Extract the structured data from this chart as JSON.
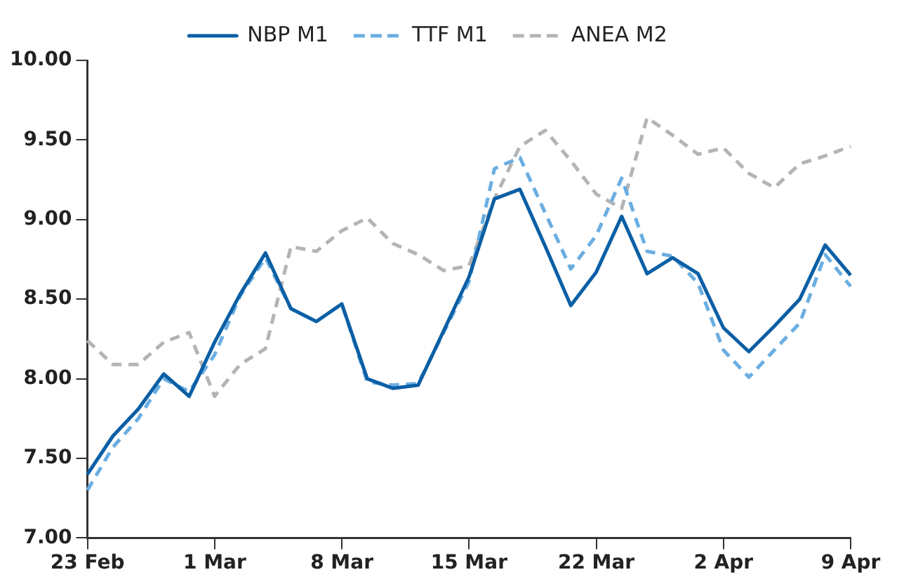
{
  "chart_data": {
    "type": "line",
    "categories": [
      "23 Feb",
      null,
      null,
      null,
      null,
      "1 Mar",
      null,
      null,
      null,
      null,
      "8 Mar",
      null,
      null,
      null,
      null,
      "15 Mar",
      null,
      null,
      null,
      null,
      "22 Mar",
      null,
      null,
      null,
      null,
      "2 Apr",
      null,
      null,
      null,
      null,
      "9 Apr"
    ],
    "series": [
      {
        "name": "NBP M1",
        "color": "#0b5fa5",
        "line_style": "solid",
        "values": [
          7.4,
          7.64,
          7.81,
          8.03,
          7.89,
          8.23,
          8.53,
          8.79,
          8.44,
          8.36,
          8.47,
          8.0,
          7.94,
          7.96,
          8.3,
          8.64,
          9.13,
          9.19,
          8.83,
          8.46,
          8.67,
          9.02,
          8.66,
          8.76,
          8.66,
          8.32,
          8.17,
          8.33,
          8.5,
          8.84,
          8.65
        ]
      },
      {
        "name": "TTF M1",
        "color": "#6aaee2",
        "line_style": "dashed",
        "values": [
          7.3,
          7.57,
          7.75,
          8.0,
          7.92,
          8.15,
          8.52,
          8.76,
          8.44,
          8.36,
          8.47,
          7.98,
          7.96,
          7.97,
          8.29,
          8.61,
          9.32,
          9.39,
          9.04,
          8.69,
          8.9,
          9.26,
          8.8,
          8.77,
          8.6,
          8.18,
          8.01,
          8.18,
          8.35,
          8.78,
          8.58
        ]
      },
      {
        "name": "ANEA M2",
        "color": "#b4b4b4",
        "line_style": "dashed",
        "values": [
          8.24,
          8.09,
          8.09,
          8.23,
          8.29,
          7.89,
          8.09,
          8.19,
          8.83,
          8.8,
          8.93,
          9.01,
          8.85,
          8.78,
          8.68,
          8.71,
          9.13,
          9.46,
          9.56,
          9.37,
          9.16,
          9.07,
          9.64,
          9.53,
          9.41,
          9.45,
          9.29,
          9.2,
          9.35,
          9.4,
          9.46
        ]
      }
    ],
    "ylim": [
      7,
      10
    ],
    "yticks": [
      {
        "value": 7,
        "label": "7.00"
      },
      {
        "value": 7.5,
        "label": "7.50"
      },
      {
        "value": 8,
        "label": "8.00"
      },
      {
        "value": 8.5,
        "label": "8.50"
      },
      {
        "value": 9,
        "label": "9.00"
      },
      {
        "value": 9.5,
        "label": "9.50"
      },
      {
        "value": 10,
        "label": "10.00"
      }
    ],
    "grid": false,
    "legend": "top",
    "marker": "none"
  }
}
